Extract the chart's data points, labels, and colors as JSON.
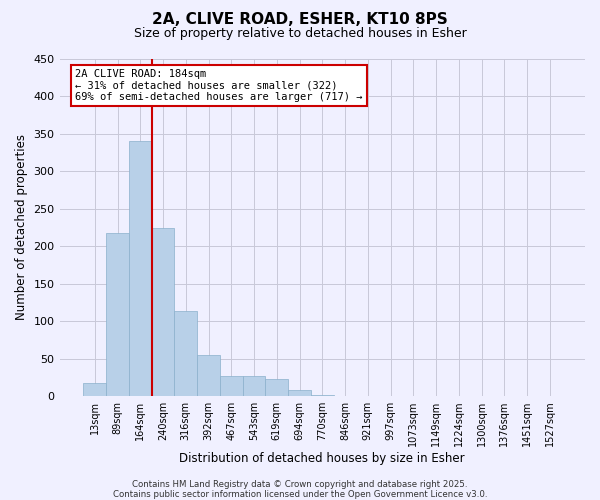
{
  "title": "2A, CLIVE ROAD, ESHER, KT10 8PS",
  "subtitle": "Size of property relative to detached houses in Esher",
  "xlabel": "Distribution of detached houses by size in Esher",
  "ylabel": "Number of detached properties",
  "categories": [
    "13sqm",
    "89sqm",
    "164sqm",
    "240sqm",
    "316sqm",
    "392sqm",
    "467sqm",
    "543sqm",
    "619sqm",
    "694sqm",
    "770sqm",
    "846sqm",
    "921sqm",
    "997sqm",
    "1073sqm",
    "1149sqm",
    "1224sqm",
    "1300sqm",
    "1376sqm",
    "1451sqm",
    "1527sqm"
  ],
  "values": [
    17,
    217,
    340,
    224,
    113,
    55,
    27,
    26,
    22,
    8,
    1,
    0,
    0,
    0,
    0,
    0,
    0,
    0,
    0,
    0,
    0
  ],
  "bar_color": "#b8d0e8",
  "bar_edge_color": "#8ab0cc",
  "vline_x_index": 2.5,
  "vline_color": "#cc0000",
  "annotation_box_text": "2A CLIVE ROAD: 184sqm\n← 31% of detached houses are smaller (322)\n69% of semi-detached houses are larger (717) →",
  "annotation_box_color": "#cc0000",
  "annotation_box_facecolor": "#ffffff",
  "ylim": [
    0,
    450
  ],
  "yticks": [
    0,
    50,
    100,
    150,
    200,
    250,
    300,
    350,
    400,
    450
  ],
  "footnote1": "Contains HM Land Registry data © Crown copyright and database right 2025.",
  "footnote2": "Contains public sector information licensed under the Open Government Licence v3.0.",
  "background_color": "#f0f0ff",
  "grid_color": "#c8c8d8"
}
